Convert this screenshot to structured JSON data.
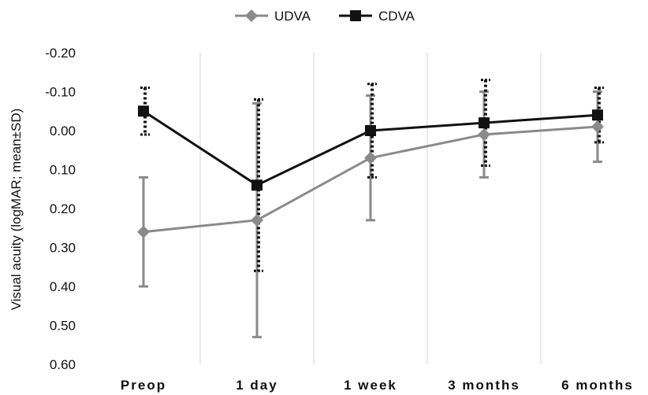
{
  "chart_data": {
    "type": "line",
    "categories": [
      "Preop",
      "1 day",
      "1 week",
      "3 months",
      "6 months"
    ],
    "ylabel": "Visual acuity (logMAR; mean±SD)",
    "ylim": [
      -0.2,
      0.6
    ],
    "y_reversed": true,
    "yticks": [
      -0.2,
      -0.1,
      0.0,
      0.1,
      0.2,
      0.3,
      0.4,
      0.5,
      0.6
    ],
    "ytick_labels": [
      "-0.20",
      "-0.10",
      "0.00",
      "0.10",
      "0.20",
      "0.30",
      "0.40",
      "0.50",
      "0.60"
    ],
    "grid": "vertical",
    "legend_position": "top-center",
    "series": [
      {
        "name": "UDVA",
        "color": "#8a8a8a",
        "marker": "diamond",
        "errorbar_style": "solid",
        "values": [
          0.26,
          0.23,
          0.07,
          0.01,
          -0.01
        ],
        "sd": [
          0.14,
          0.3,
          0.16,
          0.11,
          0.09
        ]
      },
      {
        "name": "CDVA",
        "color": "#111111",
        "marker": "square",
        "errorbar_style": "dotted",
        "values": [
          -0.05,
          0.14,
          0.0,
          -0.02,
          -0.04
        ],
        "sd": [
          0.06,
          0.22,
          0.12,
          0.11,
          0.07
        ]
      }
    ]
  }
}
